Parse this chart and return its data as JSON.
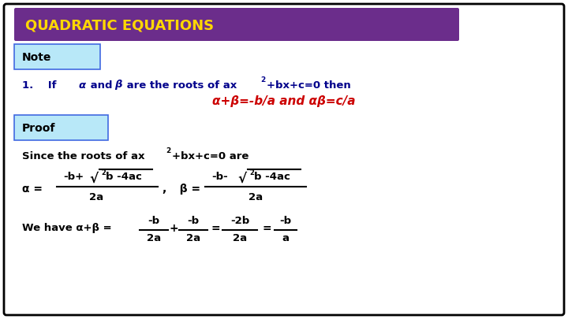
{
  "title": "QUADRATIC EQUATIONS",
  "title_color": "#FFD700",
  "title_bg_color": "#6B2D8B",
  "note_label": "Note",
  "proof_label": "Proof",
  "box_bg_color": "#B8E8F8",
  "box_border_color": "#4169E1",
  "bg_color": "#FFFFFF",
  "border_color": "#000000",
  "blue_color": "#00008B",
  "red_color": "#CC0000",
  "black_color": "#000000"
}
